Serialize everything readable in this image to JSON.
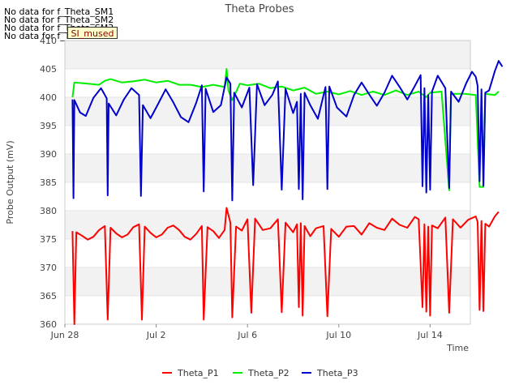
{
  "no_data_messages": [
    "No data for f_Theta_SM1",
    "No data for f_Theta_SM2",
    "No data for f_Theta_SM3",
    "No data for f_Theta_SM4"
  ],
  "stamp_label": "SI_mused",
  "chart_data": {
    "type": "line",
    "title": "Theta Probes",
    "xlabel": "Time",
    "ylabel": "Probe Output (mV)",
    "ylim": [
      360,
      410
    ],
    "yticks": [
      360,
      365,
      370,
      375,
      380,
      385,
      390,
      395,
      400,
      405,
      410
    ],
    "xlim": [
      "2023-06-28",
      "2023-07-16"
    ],
    "xticks": [
      {
        "label": "Jun 28",
        "date": "2023-06-28"
      },
      {
        "label": "Jul 2",
        "date": "2023-07-02"
      },
      {
        "label": "Jul 6",
        "date": "2023-07-06"
      },
      {
        "label": "Jul 10",
        "date": "2023-07-10"
      },
      {
        "label": "Jul 14",
        "date": "2023-07-14"
      }
    ],
    "grid": true,
    "legend_position": "bottom",
    "series": [
      {
        "name": "Theta_P1",
        "color": "#ff0000",
        "points": [
          [
            "2023-06-28T08:00",
            376.4
          ],
          [
            "2023-06-28T10:00",
            360
          ],
          [
            "2023-06-28T12:00",
            376.2
          ],
          [
            "2023-06-28T18:00",
            375.6
          ],
          [
            "2023-06-29T00:00",
            374.9
          ],
          [
            "2023-06-29T06:00",
            375.4
          ],
          [
            "2023-06-29T12:00",
            376.6
          ],
          [
            "2023-06-29T18:00",
            377.3
          ],
          [
            "2023-06-29T21:00",
            360.8
          ],
          [
            "2023-06-30T00:00",
            377.0
          ],
          [
            "2023-06-30T06:00",
            376.0
          ],
          [
            "2023-06-30T12:00",
            375.3
          ],
          [
            "2023-06-30T18:00",
            375.8
          ],
          [
            "2023-07-01T00:00",
            377.1
          ],
          [
            "2023-07-01T06:00",
            377.6
          ],
          [
            "2023-07-01T09:00",
            360.8
          ],
          [
            "2023-07-01T12:00",
            377.2
          ],
          [
            "2023-07-01T18:00",
            376.1
          ],
          [
            "2023-07-02T00:00",
            375.3
          ],
          [
            "2023-07-02T06:00",
            375.8
          ],
          [
            "2023-07-02T12:00",
            377.0
          ],
          [
            "2023-07-02T18:00",
            377.4
          ],
          [
            "2023-07-03T00:00",
            376.6
          ],
          [
            "2023-07-03T06:00",
            375.4
          ],
          [
            "2023-07-03T12:00",
            374.9
          ],
          [
            "2023-07-03T18:00",
            375.9
          ],
          [
            "2023-07-04T00:00",
            377.3
          ],
          [
            "2023-07-04T02:00",
            360.8
          ],
          [
            "2023-07-04T06:00",
            377.1
          ],
          [
            "2023-07-04T12:00",
            376.4
          ],
          [
            "2023-07-04T18:00",
            375.2
          ],
          [
            "2023-07-05T00:00",
            376.6
          ],
          [
            "2023-07-05T02:00",
            380.5
          ],
          [
            "2023-07-05T06:00",
            377.9
          ],
          [
            "2023-07-05T08:00",
            361.2
          ],
          [
            "2023-07-05T12:00",
            377.2
          ],
          [
            "2023-07-05T18:00",
            376.5
          ],
          [
            "2023-07-06T00:00",
            378.5
          ],
          [
            "2023-07-06T04:00",
            362.0
          ],
          [
            "2023-07-06T08:00",
            378.6
          ],
          [
            "2023-07-06T16:00",
            376.6
          ],
          [
            "2023-07-07T00:00",
            376.9
          ],
          [
            "2023-07-07T08:00",
            378.5
          ],
          [
            "2023-07-07T12:00",
            362.1
          ],
          [
            "2023-07-07T16:00",
            377.9
          ],
          [
            "2023-07-08T00:00",
            376.2
          ],
          [
            "2023-07-08T04:00",
            377.6
          ],
          [
            "2023-07-08T06:00",
            363.0
          ],
          [
            "2023-07-08T08:00",
            377.8
          ],
          [
            "2023-07-08T10:00",
            361.5
          ],
          [
            "2023-07-08T12:00",
            377.3
          ],
          [
            "2023-07-08T18:00",
            375.5
          ],
          [
            "2023-07-09T00:00",
            376.9
          ],
          [
            "2023-07-09T08:00",
            377.3
          ],
          [
            "2023-07-09T12:00",
            361.4
          ],
          [
            "2023-07-09T16:00",
            376.8
          ],
          [
            "2023-07-10T00:00",
            375.4
          ],
          [
            "2023-07-10T08:00",
            377.2
          ],
          [
            "2023-07-10T16:00",
            377.3
          ],
          [
            "2023-07-11T00:00",
            375.8
          ],
          [
            "2023-07-11T08:00",
            377.8
          ],
          [
            "2023-07-11T16:00",
            377.0
          ],
          [
            "2023-07-12T00:00",
            376.6
          ],
          [
            "2023-07-12T08:00",
            378.6
          ],
          [
            "2023-07-12T16:00",
            377.5
          ],
          [
            "2023-07-13T00:00",
            377.0
          ],
          [
            "2023-07-13T08:00",
            378.9
          ],
          [
            "2023-07-13T12:00",
            378.5
          ],
          [
            "2023-07-13T16:00",
            363.0
          ],
          [
            "2023-07-13T18:00",
            377.6
          ],
          [
            "2023-07-13T20:00",
            362.2
          ],
          [
            "2023-07-13T22:00",
            377.2
          ],
          [
            "2023-07-14T00:00",
            361.5
          ],
          [
            "2023-07-14T02:00",
            377.4
          ],
          [
            "2023-07-14T08:00",
            376.9
          ],
          [
            "2023-07-14T16:00",
            378.8
          ],
          [
            "2023-07-14T20:00",
            362.0
          ],
          [
            "2023-07-15T00:00",
            378.5
          ],
          [
            "2023-07-15T08:00",
            377.0
          ],
          [
            "2023-07-15T16:00",
            378.4
          ],
          [
            "2023-07-16T00:00",
            379.0
          ],
          [
            "2023-07-16T02:00",
            378.0
          ],
          [
            "2023-07-16T04:00",
            362.5
          ],
          [
            "2023-07-16T06:00",
            378.2
          ],
          [
            "2023-07-16T08:00",
            362.3
          ],
          [
            "2023-07-16T10:00",
            377.7
          ],
          [
            "2023-07-16T14:00",
            377.2
          ],
          [
            "2023-07-16T20:00",
            379.0
          ],
          [
            "2023-07-17T00:00",
            379.8
          ]
        ]
      },
      {
        "name": "Theta_P2",
        "color": "#00ee00",
        "points": [
          [
            "2023-06-28T08:00",
            400.0
          ],
          [
            "2023-06-28T10:00",
            402.6
          ],
          [
            "2023-06-29T00:00",
            402.4
          ],
          [
            "2023-06-29T12:00",
            402.2
          ],
          [
            "2023-06-29T18:00",
            402.9
          ],
          [
            "2023-06-30T00:00",
            403.2
          ],
          [
            "2023-06-30T12:00",
            402.6
          ],
          [
            "2023-07-01T00:00",
            402.8
          ],
          [
            "2023-07-01T12:00",
            403.1
          ],
          [
            "2023-07-02T00:00",
            402.6
          ],
          [
            "2023-07-02T12:00",
            402.9
          ],
          [
            "2023-07-03T00:00",
            402.2
          ],
          [
            "2023-07-03T12:00",
            402.2
          ],
          [
            "2023-07-04T00:00",
            401.8
          ],
          [
            "2023-07-04T12:00",
            402.2
          ],
          [
            "2023-07-05T00:00",
            401.8
          ],
          [
            "2023-07-05T02:00",
            405.0
          ],
          [
            "2023-07-05T04:00",
            401.2
          ],
          [
            "2023-07-05T08:00",
            399.5
          ],
          [
            "2023-07-05T16:00",
            402.4
          ],
          [
            "2023-07-06T00:00",
            402.1
          ],
          [
            "2023-07-06T12:00",
            402.4
          ],
          [
            "2023-07-07T00:00",
            401.6
          ],
          [
            "2023-07-07T12:00",
            401.9
          ],
          [
            "2023-07-08T00:00",
            401.2
          ],
          [
            "2023-07-08T12:00",
            401.7
          ],
          [
            "2023-07-09T00:00",
            400.6
          ],
          [
            "2023-07-09T12:00",
            401.0
          ],
          [
            "2023-07-10T00:00",
            400.5
          ],
          [
            "2023-07-10T12:00",
            401.1
          ],
          [
            "2023-07-11T00:00",
            400.4
          ],
          [
            "2023-07-11T12:00",
            401.0
          ],
          [
            "2023-07-12T00:00",
            400.4
          ],
          [
            "2023-07-12T12:00",
            401.2
          ],
          [
            "2023-07-13T00:00",
            400.4
          ],
          [
            "2023-07-13T12:00",
            401.0
          ],
          [
            "2023-07-13T20:00",
            400.0
          ],
          [
            "2023-07-14T00:00",
            400.8
          ],
          [
            "2023-07-14T12:00",
            401.0
          ],
          [
            "2023-07-14T20:00",
            383.6
          ],
          [
            "2023-07-14T22:00",
            400.6
          ],
          [
            "2023-07-15T12:00",
            400.6
          ],
          [
            "2023-07-16T00:00",
            400.4
          ],
          [
            "2023-07-16T04:00",
            384.2
          ],
          [
            "2023-07-16T08:00",
            384.2
          ],
          [
            "2023-07-16T10:00",
            400.6
          ],
          [
            "2023-07-16T20:00",
            400.4
          ],
          [
            "2023-07-17T00:00",
            401.0
          ]
        ]
      },
      {
        "name": "Theta_P3",
        "color": "#0000cc",
        "points": [
          [
            "2023-06-28T08:00",
            399.6
          ],
          [
            "2023-06-28T09:00",
            382.2
          ],
          [
            "2023-06-28T10:00",
            399.5
          ],
          [
            "2023-06-28T16:00",
            397.3
          ],
          [
            "2023-06-28T22:00",
            396.7
          ],
          [
            "2023-06-29T06:00",
            399.9
          ],
          [
            "2023-06-29T14:00",
            401.6
          ],
          [
            "2023-06-29T20:00",
            399.8
          ],
          [
            "2023-06-29T21:00",
            382.7
          ],
          [
            "2023-06-29T22:00",
            398.9
          ],
          [
            "2023-06-30T06:00",
            396.8
          ],
          [
            "2023-06-30T14:00",
            399.6
          ],
          [
            "2023-06-30T22:00",
            401.6
          ],
          [
            "2023-07-01T06:00",
            400.4
          ],
          [
            "2023-07-01T08:00",
            382.6
          ],
          [
            "2023-07-01T10:00",
            398.6
          ],
          [
            "2023-07-01T18:00",
            396.3
          ],
          [
            "2023-07-02T02:00",
            398.8
          ],
          [
            "2023-07-02T10:00",
            401.4
          ],
          [
            "2023-07-02T18:00",
            399.1
          ],
          [
            "2023-07-03T02:00",
            396.5
          ],
          [
            "2023-07-03T10:00",
            395.6
          ],
          [
            "2023-07-03T18:00",
            399.0
          ],
          [
            "2023-07-04T00:00",
            402.1
          ],
          [
            "2023-07-04T02:00",
            383.4
          ],
          [
            "2023-07-04T04:00",
            401.5
          ],
          [
            "2023-07-04T12:00",
            397.4
          ],
          [
            "2023-07-04T20:00",
            398.6
          ],
          [
            "2023-07-05T02:00",
            403.5
          ],
          [
            "2023-07-05T06:00",
            402.4
          ],
          [
            "2023-07-05T08:00",
            381.8
          ],
          [
            "2023-07-05T10:00",
            400.8
          ],
          [
            "2023-07-05T18:00",
            398.2
          ],
          [
            "2023-07-06T02:00",
            401.7
          ],
          [
            "2023-07-06T06:00",
            384.5
          ],
          [
            "2023-07-06T10:00",
            402.3
          ],
          [
            "2023-07-06T18:00",
            398.6
          ],
          [
            "2023-07-07T02:00",
            400.4
          ],
          [
            "2023-07-07T08:00",
            402.8
          ],
          [
            "2023-07-07T12:00",
            383.7
          ],
          [
            "2023-07-07T16:00",
            401.5
          ],
          [
            "2023-07-08T00:00",
            397.2
          ],
          [
            "2023-07-08T04:00",
            399.2
          ],
          [
            "2023-07-08T06:00",
            383.8
          ],
          [
            "2023-07-08T08:00",
            400.6
          ],
          [
            "2023-07-08T10:00",
            382.0
          ],
          [
            "2023-07-08T12:00",
            400.8
          ],
          [
            "2023-07-08T18:00",
            398.6
          ],
          [
            "2023-07-09T02:00",
            396.2
          ],
          [
            "2023-07-09T10:00",
            401.8
          ],
          [
            "2023-07-09T12:00",
            383.8
          ],
          [
            "2023-07-09T14:00",
            401.9
          ],
          [
            "2023-07-09T22:00",
            398.2
          ],
          [
            "2023-07-10T08:00",
            396.6
          ],
          [
            "2023-07-10T16:00",
            400.4
          ],
          [
            "2023-07-11T00:00",
            402.6
          ],
          [
            "2023-07-11T08:00",
            400.5
          ],
          [
            "2023-07-11T16:00",
            398.5
          ],
          [
            "2023-07-12T00:00",
            400.8
          ],
          [
            "2023-07-12T08:00",
            403.8
          ],
          [
            "2023-07-12T16:00",
            401.8
          ],
          [
            "2023-07-13T00:00",
            399.6
          ],
          [
            "2023-07-13T08:00",
            402.0
          ],
          [
            "2023-07-13T14:00",
            403.9
          ],
          [
            "2023-07-13T16:00",
            384.3
          ],
          [
            "2023-07-13T18:00",
            401.6
          ],
          [
            "2023-07-13T20:00",
            383.2
          ],
          [
            "2023-07-13T22:00",
            400.4
          ],
          [
            "2023-07-14T00:00",
            383.7
          ],
          [
            "2023-07-14T02:00",
            401.0
          ],
          [
            "2023-07-14T08:00",
            403.8
          ],
          [
            "2023-07-14T16:00",
            401.6
          ],
          [
            "2023-07-14T20:00",
            384.0
          ],
          [
            "2023-07-14T22:00",
            401.0
          ],
          [
            "2023-07-15T06:00",
            399.2
          ],
          [
            "2023-07-15T14:00",
            402.5
          ],
          [
            "2023-07-15T20:00",
            404.5
          ],
          [
            "2023-07-16T00:00",
            403.6
          ],
          [
            "2023-07-16T02:00",
            402.0
          ],
          [
            "2023-07-16T04:00",
            385.2
          ],
          [
            "2023-07-16T06:00",
            401.4
          ],
          [
            "2023-07-16T08:00",
            384.4
          ],
          [
            "2023-07-16T10:00",
            400.8
          ],
          [
            "2023-07-16T14:00",
            401.2
          ],
          [
            "2023-07-16T20:00",
            404.6
          ],
          [
            "2023-07-17T00:00",
            406.4
          ],
          [
            "2023-07-17T04:00",
            405.4
          ]
        ]
      }
    ]
  }
}
